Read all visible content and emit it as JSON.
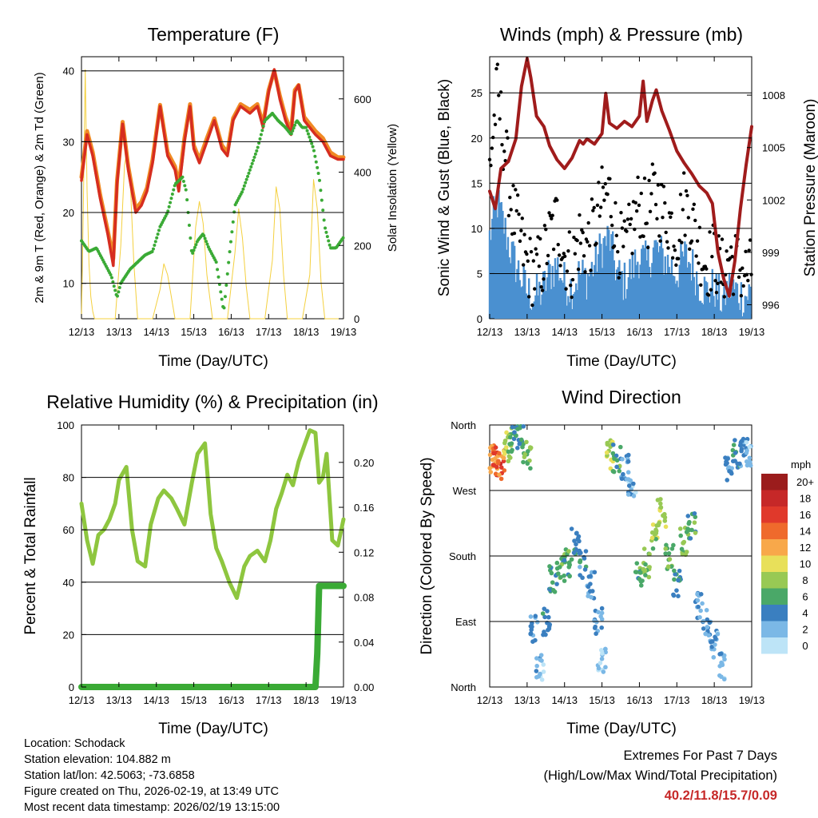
{
  "meta": {
    "location": "Location: Schodack",
    "elevation": "Station elevation: 104.882 m",
    "latlon": "Station lat/lon: 42.5063; -73.6858",
    "created": "Figure created on Thu, 2026-02-19, at 13:49 UTC",
    "recent": "Most recent data timestamp: 2026/02/19 13:15:00"
  },
  "extremes": {
    "title": "Extremes For Past 7 Days",
    "subtitle": "(High/Low/Max Wind/Total Precipitation)",
    "values": "40.2/11.8/15.7/0.09"
  },
  "colors": {
    "temp2m": "#d62d20",
    "temp9m": "#f08a24",
    "dewpoint": "#3aaa35",
    "solar": "#f4d03f",
    "wind": "#4a90d0",
    "gust": "#000000",
    "pressure": "#a01c1c",
    "rh": "#8ec63f",
    "precip": "#3aaa35"
  },
  "chart_data": [
    {
      "id": "temperature",
      "type": "line",
      "title": "Temperature (F)",
      "xlabel": "Time (Day/UTC)",
      "ylabel": "2m & 9m T (Red, Orange) & 2m Td (Green)",
      "y2label": "Solar Insolation (Yellow)",
      "x_ticks": [
        "12/13",
        "13/13",
        "14/13",
        "15/13",
        "16/13",
        "17/13",
        "18/13",
        "19/13"
      ],
      "xlim": [
        0,
        7
      ],
      "ylim": [
        5,
        42
      ],
      "y_ticks": [
        10,
        20,
        30,
        40
      ],
      "y2lim": [
        0,
        715
      ],
      "y2_ticks": [
        0,
        200,
        400,
        600
      ],
      "series": [
        {
          "name": "2m T",
          "x": [
            0,
            0.15,
            0.3,
            0.5,
            0.7,
            0.85,
            0.95,
            1.1,
            1.25,
            1.45,
            1.6,
            1.75,
            1.9,
            2.1,
            2.3,
            2.5,
            2.6,
            2.75,
            2.9,
            3.0,
            3.15,
            3.35,
            3.55,
            3.75,
            3.9,
            4.05,
            4.25,
            4.5,
            4.7,
            4.85,
            5.0,
            5.15,
            5.3,
            5.45,
            5.6,
            5.7,
            5.8,
            5.95,
            6.1,
            6.25,
            6.45,
            6.65,
            6.85,
            7.0
          ],
          "y": [
            24.5,
            31,
            28,
            22,
            17,
            12.5,
            24,
            32.5,
            26,
            20,
            21,
            23,
            27,
            35,
            28,
            26,
            23,
            30,
            35,
            29,
            27,
            30,
            33,
            29,
            28,
            33,
            35,
            34,
            35,
            32,
            37,
            40.2,
            36,
            33,
            31,
            37,
            38,
            33,
            32,
            31,
            30,
            28,
            27.5,
            27.5
          ]
        },
        {
          "name": "9m T",
          "x": [
            0,
            0.15,
            0.3,
            0.5,
            0.7,
            0.85,
            0.95,
            1.1,
            1.25,
            1.45,
            1.6,
            1.75,
            1.9,
            2.1,
            2.3,
            2.5,
            2.6,
            2.75,
            2.9,
            3.0,
            3.15,
            3.35,
            3.55,
            3.75,
            3.9,
            4.05,
            4.25,
            4.5,
            4.7,
            4.85,
            5.0,
            5.15,
            5.3,
            5.45,
            5.6,
            5.7,
            5.8,
            5.95,
            6.1,
            6.25,
            6.45,
            6.65,
            6.85,
            7.0
          ],
          "y": [
            25,
            31.5,
            28.5,
            22.5,
            17.5,
            13.5,
            24.5,
            32.8,
            26.5,
            20.5,
            21.5,
            23.5,
            27.5,
            35.2,
            28.5,
            26.5,
            24,
            30.5,
            35.3,
            29.5,
            27.5,
            30.5,
            33.3,
            29.5,
            28.5,
            33.3,
            35.3,
            34.5,
            35.3,
            32.5,
            37.3,
            40,
            36.5,
            33.5,
            31.5,
            37.3,
            38,
            33.5,
            32.5,
            31.5,
            30.5,
            28.5,
            27.8,
            27.8
          ]
        },
        {
          "name": "2m Td",
          "x": [
            0,
            0.2,
            0.4,
            0.6,
            0.8,
            0.95,
            1.05,
            1.3,
            1.5,
            1.7,
            1.9,
            2.1,
            2.3,
            2.5,
            2.7,
            2.8,
            2.95,
            3.1,
            3.25,
            3.4,
            3.6,
            3.8,
            3.95,
            4.1,
            4.3,
            4.5,
            4.7,
            4.9,
            5.1,
            5.25,
            5.45,
            5.6,
            5.75,
            5.9,
            6.0,
            6.2,
            6.35,
            6.5,
            6.65,
            6.8,
            7.0
          ],
          "y": [
            16,
            14.5,
            15,
            13,
            11,
            8,
            10,
            12,
            13,
            14,
            14.5,
            18,
            20,
            24,
            25,
            23,
            14,
            16,
            17,
            15,
            13,
            6,
            14,
            21,
            23,
            26,
            29,
            33,
            34,
            33,
            32,
            31,
            33,
            32,
            32,
            29,
            25,
            18,
            15,
            15,
            16.5
          ]
        },
        {
          "name": "Solar",
          "axis": "y2",
          "x": [
            0,
            0.05,
            0.1,
            0.15,
            0.2,
            0.25,
            0.3,
            0.35,
            0.4,
            0.9,
            1.05,
            1.15,
            1.2,
            1.3,
            1.4,
            1.5,
            1.9,
            2.1,
            2.2,
            2.3,
            2.4,
            2.5,
            2.9,
            3.05,
            3.15,
            3.25,
            3.35,
            3.5,
            3.9,
            4.1,
            4.2,
            4.3,
            4.4,
            4.5,
            4.9,
            5.1,
            5.2,
            5.3,
            5.4,
            5.5,
            5.9,
            6.1,
            6.2,
            6.3,
            6.4,
            6.5,
            7.0
          ],
          "y": [
            0,
            300,
            680,
            350,
            150,
            60,
            20,
            0,
            0,
            0,
            200,
            420,
            450,
            380,
            150,
            0,
            0,
            80,
            150,
            120,
            60,
            0,
            0,
            250,
            320,
            260,
            120,
            0,
            0,
            180,
            300,
            220,
            90,
            0,
            0,
            160,
            360,
            300,
            120,
            0,
            0,
            120,
            380,
            300,
            100,
            0,
            0
          ]
        }
      ]
    },
    {
      "id": "winds",
      "type": "scatter",
      "title": "Winds (mph) & Pressure (mb)",
      "xlabel": "Time (Day/UTC)",
      "ylabel": "Sonic Wind & Gust (Blue, Black)",
      "y2label": "Station Pressure (Maroon)",
      "x_ticks": [
        "12/13",
        "13/13",
        "14/13",
        "15/13",
        "16/13",
        "17/13",
        "18/13",
        "19/13"
      ],
      "xlim": [
        0,
        7
      ],
      "ylim": [
        0,
        29
      ],
      "y_ticks": [
        0,
        5,
        10,
        15,
        20,
        25
      ],
      "y2lim": [
        995.2,
        1010.2
      ],
      "y2_ticks": [
        996,
        999,
        1002,
        1005,
        1008
      ],
      "series": [
        {
          "name": "Wind",
          "x": [
            0,
            0.2,
            0.4,
            0.6,
            0.8,
            1.0,
            1.2,
            1.4,
            1.6,
            1.8,
            2.0,
            2.2,
            2.4,
            2.6,
            2.8,
            3.0,
            3.2,
            3.4,
            3.6,
            3.8,
            4.0,
            4.2,
            4.4,
            4.6,
            4.8,
            5.0,
            5.2,
            5.4,
            5.6,
            5.8,
            6.0,
            6.2,
            6.4,
            6.6,
            6.8,
            7.0
          ],
          "y": [
            9,
            13,
            10,
            7,
            5,
            3,
            2.5,
            3,
            5,
            6,
            4,
            3.5,
            5,
            4.5,
            6,
            8,
            9,
            5,
            4,
            5.5,
            7,
            6,
            8,
            7,
            6,
            5,
            7,
            6,
            4,
            3,
            3.5,
            2,
            3.5,
            3,
            2.5,
            3
          ]
        },
        {
          "name": "Gust",
          "x": [
            0,
            0.2,
            0.4,
            0.6,
            0.8,
            1.0,
            1.2,
            1.4,
            1.6,
            1.8,
            2.0,
            2.2,
            2.4,
            2.6,
            2.8,
            3.0,
            3.2,
            3.4,
            3.6,
            3.8,
            4.0,
            4.2,
            4.4,
            4.6,
            4.8,
            5.0,
            5.2,
            5.4,
            5.6,
            5.8,
            6.0,
            6.2,
            6.4,
            6.6,
            6.8,
            7.0
          ],
          "y": [
            17,
            25,
            19,
            12,
            9,
            6,
            5,
            6,
            9,
            11,
            7,
            6,
            9,
            8,
            10,
            13,
            14,
            9,
            7,
            10,
            13,
            11,
            14,
            12,
            11,
            9,
            13,
            11,
            8,
            6,
            7,
            5,
            7,
            6,
            5,
            5
          ]
        },
        {
          "name": "Pressure",
          "axis": "y2",
          "x": [
            0,
            0.15,
            0.3,
            0.5,
            0.7,
            0.85,
            1.0,
            1.1,
            1.25,
            1.45,
            1.6,
            1.8,
            2.0,
            2.2,
            2.4,
            2.5,
            2.6,
            2.8,
            3.0,
            3.1,
            3.2,
            3.4,
            3.6,
            3.8,
            4.0,
            4.1,
            4.2,
            4.35,
            4.45,
            4.6,
            4.8,
            5.0,
            5.2,
            5.4,
            5.6,
            5.8,
            5.95,
            6.1,
            6.25,
            6.4,
            6.55,
            6.7,
            6.85,
            7.0
          ],
          "y": [
            1002.5,
            1001.5,
            1003.8,
            1004.2,
            1005.5,
            1008.5,
            1010.1,
            1009,
            1006.8,
            1006.2,
            1005.1,
            1004.3,
            1003.8,
            1004.4,
            1005.4,
            1005.2,
            1005.5,
            1005.2,
            1005.8,
            1008.1,
            1006.4,
            1006.1,
            1006.5,
            1006.2,
            1006.8,
            1008.8,
            1006.5,
            1007.7,
            1008.3,
            1007.1,
            1006,
            1004.8,
            1004.1,
            1003.5,
            1002.8,
            1002.4,
            1001.8,
            999,
            997.5,
            996.5,
            998.5,
            1001.5,
            1004,
            1006.2
          ]
        }
      ]
    },
    {
      "id": "humidity",
      "type": "line",
      "title": "Relative Humidity (%) & Precipitation (in)",
      "xlabel": "Time (Day/UTC)",
      "ylabel": "Percent & Total Rainfall",
      "x_ticks": [
        "12/13",
        "13/13",
        "14/13",
        "15/13",
        "16/13",
        "17/13",
        "18/13",
        "19/13"
      ],
      "xlim": [
        0,
        7
      ],
      "ylim": [
        0,
        100
      ],
      "y_ticks": [
        0,
        20,
        40,
        60,
        80,
        100
      ],
      "y2lim": [
        0,
        0.2333
      ],
      "y2_ticks": [
        0.0,
        0.04,
        0.08,
        0.12,
        0.16,
        0.2
      ],
      "series": [
        {
          "name": "RH",
          "x": [
            0,
            0.15,
            0.3,
            0.45,
            0.6,
            0.75,
            0.9,
            1.0,
            1.2,
            1.35,
            1.5,
            1.7,
            1.85,
            2.05,
            2.2,
            2.4,
            2.55,
            2.75,
            2.95,
            3.1,
            3.3,
            3.45,
            3.6,
            3.75,
            3.95,
            4.15,
            4.35,
            4.5,
            4.7,
            4.9,
            5.05,
            5.2,
            5.35,
            5.5,
            5.65,
            5.8,
            5.95,
            6.1,
            6.25,
            6.35,
            6.45,
            6.55,
            6.7,
            6.85,
            7.0
          ],
          "y": [
            70,
            56,
            47,
            58,
            60,
            64,
            70,
            79,
            84,
            60,
            48,
            46,
            62,
            72,
            75,
            72,
            68,
            62,
            78,
            89,
            93,
            66,
            53,
            48,
            40,
            34,
            46,
            50,
            52,
            48,
            56,
            68,
            74,
            81,
            77,
            86,
            92,
            98,
            97,
            78,
            80,
            89,
            56,
            54,
            64
          ]
        },
        {
          "name": "Precip",
          "axis": "y2",
          "x": [
            0,
            6.25,
            6.3,
            6.35,
            6.4,
            7.0
          ],
          "y": [
            0,
            0,
            0.03,
            0.09,
            0.09,
            0.09
          ]
        }
      ]
    },
    {
      "id": "direction",
      "type": "scatter",
      "title": "Wind Direction",
      "xlabel": "Time (Day/UTC)",
      "ylabel": "Direction (Colored By Speed)",
      "x_ticks": [
        "12/13",
        "13/13",
        "14/13",
        "15/13",
        "16/13",
        "17/13",
        "18/13",
        "19/13"
      ],
      "xlim": [
        0,
        7
      ],
      "ylim": [
        0,
        360
      ],
      "y_ticks": [
        "North",
        "East",
        "South",
        "West",
        "North"
      ],
      "legend_title": "mph",
      "legend": [
        "20+",
        "18",
        "16",
        "14",
        "12",
        "10",
        "8",
        "6",
        "4",
        "2",
        "0"
      ],
      "legend_colors": [
        "#9b1c1c",
        "#c62828",
        "#e0392b",
        "#ef6a2c",
        "#f8a84a",
        "#e8e05a",
        "#98c954",
        "#4aa868",
        "#3a7fc0",
        "#7bb8e6",
        "#bde4f7"
      ],
      "series": [
        {
          "name": "Direction",
          "x": [
            0.1,
            0.2,
            0.3,
            0.45,
            0.6,
            0.8,
            1.0,
            1.2,
            1.35,
            1.5,
            1.7,
            1.9,
            2.1,
            2.3,
            2.5,
            2.7,
            2.9,
            3.0,
            3.2,
            3.4,
            3.6,
            3.8,
            4.0,
            4.2,
            4.4,
            4.6,
            4.8,
            5.0,
            5.2,
            5.4,
            5.6,
            5.8,
            6.0,
            6.2,
            6.4,
            6.6,
            6.8,
            6.95
          ],
          "y": [
            315,
            310,
            305,
            330,
            340,
            345,
            320,
            80,
            30,
            90,
            150,
            160,
            170,
            200,
            170,
            140,
            90,
            40,
            320,
            315,
            300,
            280,
            150,
            170,
            210,
            240,
            180,
            140,
            200,
            220,
            110,
            90,
            60,
            30,
            300,
            320,
            325,
            320
          ],
          "speed": [
            12,
            16,
            14,
            8,
            6,
            5,
            7,
            3,
            2,
            4,
            5,
            6,
            6,
            4,
            4,
            3,
            3,
            2,
            9,
            6,
            3,
            2,
            6,
            7,
            8,
            9,
            7,
            5,
            7,
            6,
            3,
            3,
            2,
            2,
            4,
            4,
            3,
            2
          ]
        }
      ]
    }
  ]
}
